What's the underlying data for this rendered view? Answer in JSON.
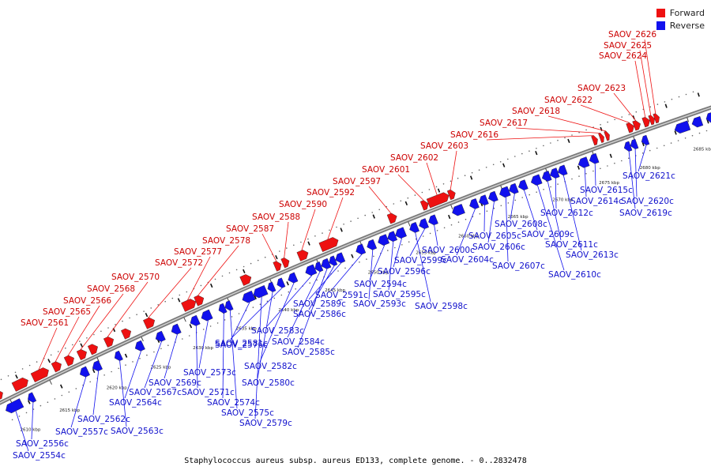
{
  "caption": "Staphylococcus aureus subsp. aureus ED133, complete genome. - 0..2832478",
  "legend": {
    "forward_label": "Forward",
    "reverse_label": "Reverse",
    "forward_color": "#ee1111",
    "reverse_color": "#1111ee"
  },
  "axis_ticks": [
    "2610 kbp",
    "2615 kbp",
    "2620 kbp",
    "2625 kbp",
    "2630 kbp",
    "2635 kbp",
    "2640 kbp",
    "2645 kbp",
    "2650 kbp",
    "2655 kbp",
    "2660 kbp",
    "2665 kbp",
    "2670 kbp",
    "2675 kbp",
    "2680 kbp",
    "2685 kbp"
  ],
  "forward_genes": [
    "SAOV_2561",
    "SAOV_2565",
    "SAOV_2566",
    "SAOV_2568",
    "SAOV_2570",
    "SAOV_2572",
    "SAOV_2577",
    "SAOV_2578",
    "SAOV_2587",
    "SAOV_2588",
    "SAOV_2590",
    "SAOV_2592",
    "SAOV_2597",
    "SAOV_2601",
    "SAOV_2602",
    "SAOV_2603",
    "SAOV_2616",
    "SAOV_2617",
    "SAOV_2618",
    "SAOV_2622",
    "SAOV_2623",
    "SAOV_2624",
    "SAOV_2625",
    "SAOV_2626"
  ],
  "reverse_genes": [
    "SAOV_2554c",
    "SAOV_2556c",
    "SAOV_2557c",
    "SAOV_2562c",
    "SAOV_2563c",
    "SAOV_2564c",
    "SAOV_2567c",
    "SAOV_2569c",
    "SAOV_2571c",
    "SAOV_2573c",
    "SAOV_2574c",
    "SAOV_2575c",
    "SAOV_2576c",
    "SAOV_2579c",
    "SAOV_2580c",
    "SAOV_2581c",
    "SAOV_2582c",
    "SAOV_2583c",
    "SAOV_2584c",
    "SAOV_2585c",
    "SAOV_2586c",
    "SAOV_2589c",
    "SAOV_2591c",
    "SAOV_2593c",
    "SAOV_2594c",
    "SAOV_2595c",
    "SAOV_2596c",
    "SAOV_2598c",
    "SAOV_2599c",
    "SAOV_2600c",
    "SAOV_2604c",
    "SAOV_2605c",
    "SAOV_2606c",
    "SAOV_2607c",
    "SAOV_2608c",
    "SAOV_2609c",
    "SAOV_2610c",
    "SAOV_2611c",
    "SAOV_2612c",
    "SAOV_2613c",
    "SAOV_2614c",
    "SAOV_2615c",
    "SAOV_2619c",
    "SAOV_2620c",
    "SAOV_2621c"
  ]
}
